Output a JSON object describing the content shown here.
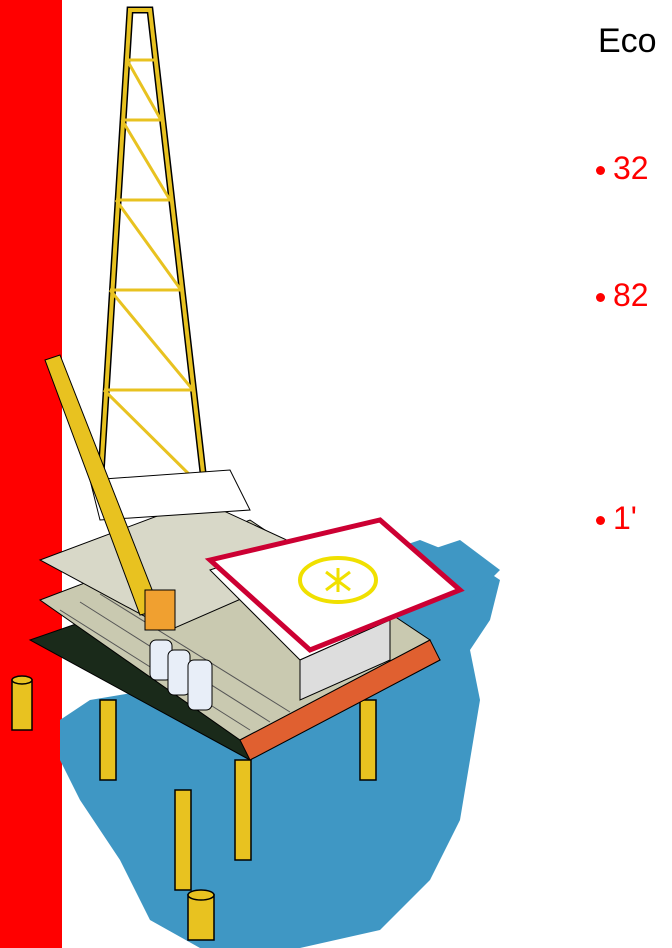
{
  "slide": {
    "title": "Eco",
    "bullets": [
      "32",
      "82",
      "1'"
    ]
  }
}
